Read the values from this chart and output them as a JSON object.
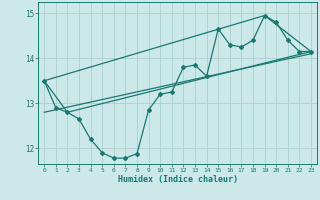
{
  "xlabel": "Humidex (Indice chaleur)",
  "ylabel": "",
  "background_color": "#cce8e8",
  "grid_color": "#aacfcf",
  "line_color": "#1a7870",
  "xlim": [
    -0.5,
    23.5
  ],
  "ylim": [
    11.65,
    15.25
  ],
  "yticks": [
    12,
    13,
    14,
    15
  ],
  "xticks": [
    0,
    1,
    2,
    3,
    4,
    5,
    6,
    7,
    8,
    9,
    10,
    11,
    12,
    13,
    14,
    15,
    16,
    17,
    18,
    19,
    20,
    21,
    22,
    23
  ],
  "series1_x": [
    0,
    1,
    2,
    3,
    4,
    5,
    6,
    7,
    8,
    9,
    10,
    11,
    12,
    13,
    14,
    15,
    16,
    17,
    18,
    19,
    20,
    21,
    22,
    23
  ],
  "series1_y": [
    13.5,
    12.9,
    12.8,
    12.65,
    12.2,
    11.9,
    11.78,
    11.78,
    11.88,
    12.85,
    13.2,
    13.25,
    13.8,
    13.85,
    13.6,
    14.65,
    14.3,
    14.25,
    14.4,
    14.95,
    14.8,
    14.4,
    14.15,
    14.15
  ],
  "series2_x": [
    0,
    2,
    23
  ],
  "series2_y": [
    13.5,
    12.8,
    14.15
  ],
  "series3_x": [
    0,
    19,
    23
  ],
  "series3_y": [
    13.5,
    14.95,
    14.15
  ],
  "series4_x": [
    0,
    23
  ],
  "series4_y": [
    12.8,
    14.1
  ],
  "markersize": 2.0,
  "linewidth": 0.9
}
